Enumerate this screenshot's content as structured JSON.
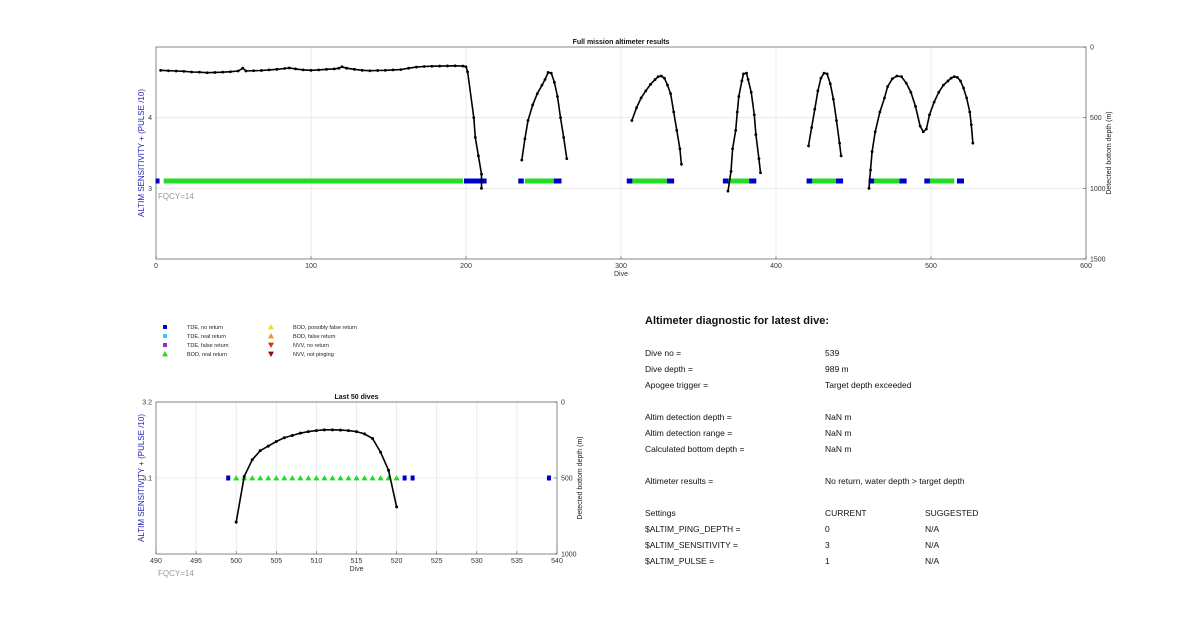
{
  "chart_data": [
    {
      "type": "scatter",
      "title": "Full mission altimeter results",
      "xlabel": "Dive",
      "ylabel": "ALTIM SENSITIVITY + (PULSE /10)",
      "ylabel_right": "Detected bottom depth (m)",
      "annotation": "FQCY=14",
      "xlim": [
        0,
        600
      ],
      "ylim": [
        2,
        5
      ],
      "ylim_right": [
        1500,
        0
      ],
      "xticks": [
        "0",
        "100",
        "200",
        "300",
        "400",
        "500",
        "600"
      ],
      "yticks": [
        "3",
        "4"
      ],
      "yticks_right": [
        "0",
        "500",
        "1000",
        "1500"
      ],
      "grid": true,
      "bottom_depth_line": [
        [
          3,
          165
        ],
        [
          8,
          168
        ],
        [
          13,
          170
        ],
        [
          18,
          172
        ],
        [
          23,
          177
        ],
        [
          28,
          178
        ],
        [
          33,
          182
        ],
        [
          38,
          180
        ],
        [
          43,
          178
        ],
        [
          48,
          175
        ],
        [
          53,
          170
        ],
        [
          56,
          150
        ],
        [
          58,
          170
        ],
        [
          63,
          168
        ],
        [
          68,
          166
        ],
        [
          73,
          162
        ],
        [
          78,
          158
        ],
        [
          83,
          152
        ],
        [
          86,
          148
        ],
        [
          90,
          155
        ],
        [
          95,
          162
        ],
        [
          100,
          165
        ],
        [
          105,
          162
        ],
        [
          110,
          158
        ],
        [
          115,
          155
        ],
        [
          118,
          150
        ],
        [
          120,
          140
        ],
        [
          123,
          150
        ],
        [
          128,
          158
        ],
        [
          133,
          165
        ],
        [
          138,
          168
        ],
        [
          143,
          166
        ],
        [
          148,
          165
        ],
        [
          153,
          162
        ],
        [
          158,
          160
        ],
        [
          163,
          150
        ],
        [
          168,
          142
        ],
        [
          173,
          138
        ],
        [
          178,
          136
        ],
        [
          183,
          135
        ],
        [
          188,
          134
        ],
        [
          193,
          133
        ],
        [
          198,
          135
        ],
        [
          200,
          140
        ],
        [
          201,
          175
        ],
        [
          205,
          500
        ],
        [
          206,
          640
        ],
        [
          208,
          770
        ],
        [
          210,
          900
        ],
        [
          210,
          1000
        ],
        [
          236,
          800
        ],
        [
          238,
          650
        ],
        [
          240,
          520
        ],
        [
          243,
          410
        ],
        [
          246,
          330
        ],
        [
          249,
          270
        ],
        [
          251,
          230
        ],
        [
          253,
          180
        ],
        [
          255,
          185
        ],
        [
          257,
          250
        ],
        [
          259,
          350
        ],
        [
          261,
          500
        ],
        [
          263,
          640
        ],
        [
          265,
          790
        ],
        [
          307,
          520
        ],
        [
          310,
          430
        ],
        [
          313,
          360
        ],
        [
          316,
          310
        ],
        [
          319,
          265
        ],
        [
          322,
          230
        ],
        [
          324,
          210
        ],
        [
          326,
          205
        ],
        [
          328,
          220
        ],
        [
          330,
          270
        ],
        [
          332,
          330
        ],
        [
          334,
          460
        ],
        [
          336,
          590
        ],
        [
          338,
          720
        ],
        [
          339,
          830
        ],
        [
          369,
          1020
        ],
        [
          371,
          880
        ],
        [
          372,
          720
        ],
        [
          374,
          590
        ],
        [
          375,
          460
        ],
        [
          376,
          350
        ],
        [
          378,
          240
        ],
        [
          379,
          190
        ],
        [
          381,
          185
        ],
        [
          382,
          230
        ],
        [
          384,
          320
        ],
        [
          386,
          480
        ],
        [
          387,
          620
        ],
        [
          389,
          790
        ],
        [
          390,
          890
        ],
        [
          421,
          700
        ],
        [
          423,
          570
        ],
        [
          425,
          440
        ],
        [
          427,
          310
        ],
        [
          429,
          220
        ],
        [
          431,
          185
        ],
        [
          433,
          190
        ],
        [
          435,
          260
        ],
        [
          437,
          370
        ],
        [
          439,
          520
        ],
        [
          441,
          680
        ],
        [
          442,
          770
        ],
        [
          460,
          1000
        ],
        [
          461,
          870
        ],
        [
          462,
          740
        ],
        [
          464,
          600
        ],
        [
          467,
          460
        ],
        [
          470,
          360
        ],
        [
          472,
          280
        ],
        [
          475,
          225
        ],
        [
          478,
          205
        ],
        [
          481,
          210
        ],
        [
          484,
          255
        ],
        [
          487,
          320
        ],
        [
          490,
          420
        ],
        [
          493,
          560
        ],
        [
          495,
          600
        ],
        [
          497,
          580
        ],
        [
          499,
          480
        ],
        [
          502,
          390
        ],
        [
          505,
          320
        ],
        [
          508,
          270
        ],
        [
          511,
          240
        ],
        [
          513,
          220
        ],
        [
          515,
          210
        ],
        [
          517,
          215
        ],
        [
          519,
          240
        ],
        [
          521,
          290
        ],
        [
          523,
          360
        ],
        [
          525,
          460
        ],
        [
          526,
          550
        ],
        [
          527,
          680
        ]
      ],
      "bod_real_return_intervals": [
        [
          5,
          198
        ],
        [
          238,
          262
        ],
        [
          307,
          332
        ],
        [
          368,
          386
        ],
        [
          422,
          442
        ],
        [
          462,
          482
        ],
        [
          498,
          515
        ]
      ],
      "tde_no_return_points": [
        1,
        200,
        202,
        204,
        206,
        208,
        210,
        212,
        235,
        236,
        258,
        260,
        305,
        306,
        331,
        333,
        367,
        368,
        384,
        386,
        421,
        422,
        440,
        442,
        461,
        462,
        481,
        483,
        497,
        498,
        518,
        520
      ]
    },
    {
      "type": "scatter",
      "title": "Last 50 dives",
      "xlabel": "Dive",
      "ylabel": "ALTIM SENSITIVITY + (PULSE /10)",
      "ylabel_right": "Detected bottom depth (m)",
      "annotation": "FQCY=14",
      "xlim": [
        490,
        540
      ],
      "ylim": [
        3,
        3.2
      ],
      "ylim_right": [
        1000,
        0
      ],
      "xticks": [
        "490",
        "495",
        "500",
        "505",
        "510",
        "515",
        "520",
        "525",
        "530",
        "535",
        "540"
      ],
      "yticks": [
        "3.1",
        "3.2"
      ],
      "yticks_right": [
        "0",
        "500",
        "1000"
      ],
      "grid": true,
      "bottom_depth_line": [
        [
          500,
          790
        ],
        [
          501,
          490
        ],
        [
          502,
          380
        ],
        [
          503,
          320
        ],
        [
          504,
          290
        ],
        [
          505,
          260
        ],
        [
          506,
          235
        ],
        [
          507,
          220
        ],
        [
          508,
          205
        ],
        [
          509,
          195
        ],
        [
          510,
          188
        ],
        [
          511,
          183
        ],
        [
          512,
          183
        ],
        [
          513,
          185
        ],
        [
          514,
          188
        ],
        [
          515,
          195
        ],
        [
          516,
          210
        ],
        [
          517,
          240
        ],
        [
          518,
          330
        ],
        [
          519,
          450
        ],
        [
          520,
          690
        ]
      ],
      "bod_real_return": [
        500,
        501,
        502,
        503,
        504,
        505,
        506,
        507,
        508,
        509,
        510,
        511,
        512,
        513,
        514,
        515,
        516,
        517,
        518,
        519,
        520
      ],
      "tde_no_return": [
        499,
        521,
        522,
        539
      ]
    }
  ],
  "legend": [
    {
      "label": "TDE, no return",
      "symbol": "square",
      "color": "#0000cc"
    },
    {
      "label": "TDE, real return",
      "symbol": "square",
      "color": "#33ccee"
    },
    {
      "label": "TDE, false return",
      "symbol": "square",
      "color": "#8833cc"
    },
    {
      "label": "BOD, real return",
      "symbol": "triangle-up",
      "color": "#22dd22"
    },
    {
      "label": "BOD, possibly false return",
      "symbol": "triangle-up",
      "color": "#eedd22"
    },
    {
      "label": "BOD, false return",
      "symbol": "triangle-up",
      "color": "#ee9922"
    },
    {
      "label": "NVV, no return",
      "symbol": "triangle-down",
      "color": "#dd3311"
    },
    {
      "label": "NVV, not pinging",
      "symbol": "triangle-down",
      "color": "#881111"
    }
  ],
  "diagnostic": {
    "heading": "Altimeter diagnostic for latest dive:",
    "rows": [
      {
        "label": "Dive no =",
        "value": "539"
      },
      {
        "label": "Dive depth =",
        "value": "989 m"
      },
      {
        "label": "Apogee trigger =",
        "value": "Target depth exceeded"
      },
      {
        "label": "Altim detection depth =",
        "value": "NaN m"
      },
      {
        "label": "Altim detection range =",
        "value": "NaN m"
      },
      {
        "label": "Calculated bottom depth =",
        "value": "NaN m"
      },
      {
        "label": "Altimeter results =",
        "value": "No return, water depth > target depth"
      }
    ],
    "settings_header": {
      "label": "Settings",
      "current": "CURRENT",
      "suggested": "SUGGESTED"
    },
    "settings": [
      {
        "label": "$ALTIM_PING_DEPTH =",
        "current": "0",
        "suggested": "N/A"
      },
      {
        "label": "$ALTIM_SENSITIVITY =",
        "current": "3",
        "suggested": "N/A"
      },
      {
        "label": "$ALTIM_PULSE =",
        "current": "1",
        "suggested": "N/A"
      }
    ]
  }
}
